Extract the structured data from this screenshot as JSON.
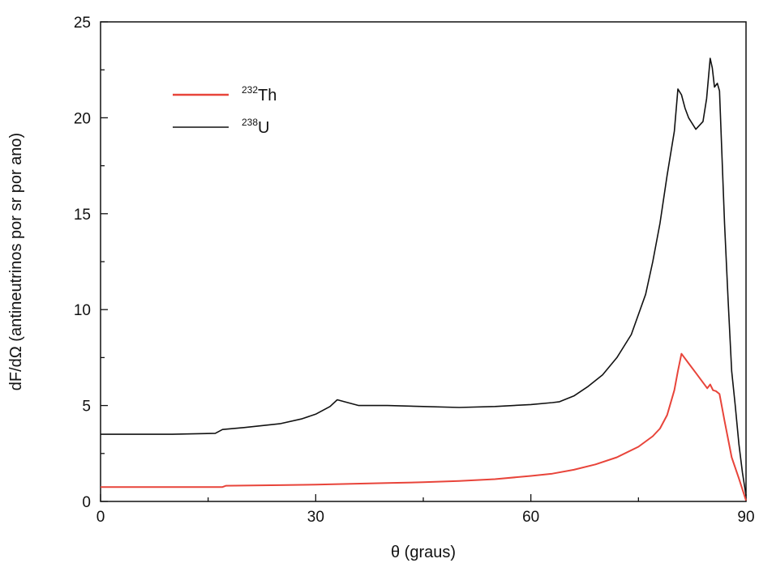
{
  "chart_data": {
    "type": "line",
    "xlabel": "θ (graus)",
    "ylabel": "dF/dΩ (antineutrinos por sr por ano)",
    "xlim": [
      0,
      90
    ],
    "ylim": [
      0,
      25
    ],
    "xticks": [
      "0",
      "30",
      "60",
      "90"
    ],
    "yticks": [
      "0",
      "5",
      "10",
      "15",
      "20",
      "25"
    ],
    "grid": false,
    "legend_position": "top-left",
    "series": [
      {
        "name": "232Th",
        "name_parts": {
          "sup": "232",
          "base": "Th"
        },
        "color": "#e8443a",
        "x": [
          0,
          10,
          17,
          17.5,
          25,
          30,
          35,
          40,
          45,
          50,
          55,
          60,
          63,
          66,
          69,
          72,
          75,
          77,
          78,
          79,
          80,
          80.5,
          81,
          82,
          83,
          84,
          84.6,
          85,
          85.4,
          85.8,
          86.3,
          87,
          88,
          89,
          90
        ],
        "y": [
          0.75,
          0.75,
          0.75,
          0.82,
          0.85,
          0.88,
          0.92,
          0.96,
          1.0,
          1.07,
          1.16,
          1.33,
          1.45,
          1.65,
          1.93,
          2.3,
          2.85,
          3.4,
          3.8,
          4.5,
          5.8,
          6.8,
          7.7,
          7.2,
          6.7,
          6.2,
          5.9,
          6.1,
          5.8,
          5.75,
          5.6,
          4.2,
          2.3,
          1.2,
          0.05
        ]
      },
      {
        "name": "238U",
        "name_parts": {
          "sup": "238",
          "base": "U"
        },
        "color": "#111111",
        "x": [
          0,
          10,
          16,
          17,
          20,
          25,
          28,
          30,
          32,
          33,
          34,
          36,
          40,
          45,
          50,
          55,
          60,
          63,
          64,
          66,
          68,
          70,
          72,
          74,
          76,
          77,
          78,
          79,
          80,
          80.5,
          81,
          81.5,
          82,
          83,
          84,
          84.5,
          85,
          85.3,
          85.6,
          86,
          86.3,
          86.6,
          87,
          87.5,
          88,
          88.5,
          89,
          89.5,
          90
        ],
        "y": [
          3.5,
          3.5,
          3.55,
          3.75,
          3.85,
          4.05,
          4.3,
          4.55,
          4.95,
          5.3,
          5.2,
          5.0,
          5.0,
          4.95,
          4.9,
          4.95,
          5.05,
          5.15,
          5.2,
          5.5,
          6.0,
          6.6,
          7.5,
          8.7,
          10.8,
          12.5,
          14.5,
          17.0,
          19.3,
          21.5,
          21.2,
          20.5,
          20.0,
          19.4,
          19.8,
          21.0,
          23.1,
          22.6,
          21.6,
          21.8,
          21.4,
          18.5,
          14.5,
          10.5,
          6.8,
          5.0,
          3.0,
          1.5,
          0.3
        ]
      }
    ]
  }
}
